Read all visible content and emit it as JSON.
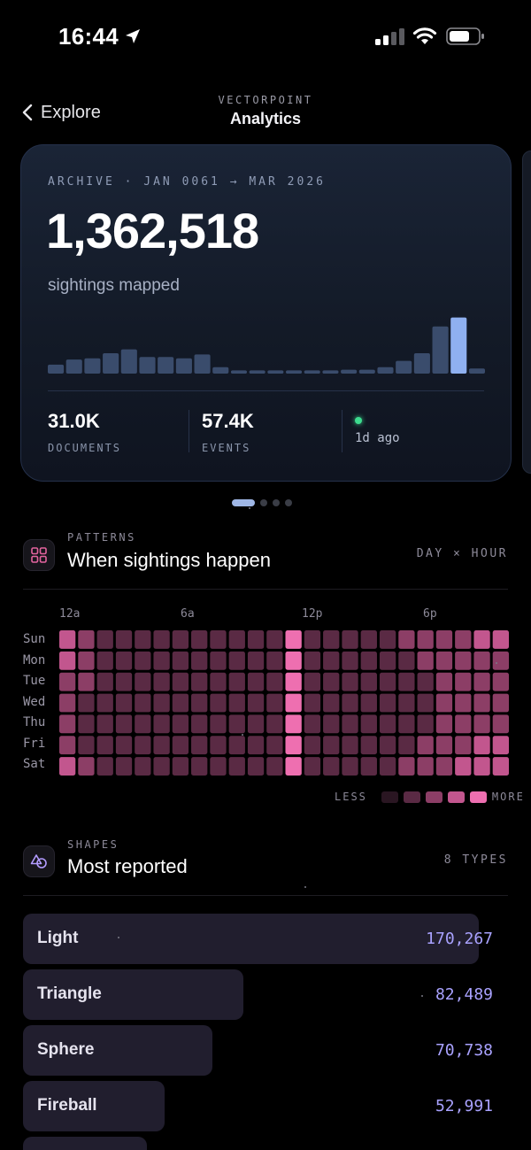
{
  "status_bar": {
    "time": "16:44"
  },
  "nav": {
    "back_label": "Explore",
    "kicker": "VECTORPOINT",
    "title": "Analytics"
  },
  "hero": {
    "kicker": "ARCHIVE · JAN 0061 → MAR 2026",
    "total": "1,362,518",
    "subtitle": "sightings mapped",
    "bar_levels": [
      0.14,
      0.22,
      0.24,
      0.32,
      0.38,
      0.26,
      0.26,
      0.24,
      0.3,
      0.1,
      0.05,
      0.05,
      0.05,
      0.05,
      0.05,
      0.05,
      0.06,
      0.06,
      0.1,
      0.2,
      0.32,
      0.74,
      0.88,
      0.08
    ],
    "highlight_index": 22,
    "stats": [
      {
        "value": "31.0K",
        "label": "DOCUMENTS"
      },
      {
        "value": "57.4K",
        "label": "EVENTS"
      }
    ],
    "updated": "1d ago",
    "colors": {
      "bar": "#3a4c6c",
      "highlight": "#8fb0f0",
      "live": "#3ddc8f"
    }
  },
  "pager": {
    "count": 4,
    "active": 0
  },
  "patterns": {
    "kicker": "PATTERNS",
    "title": "When sightings happen",
    "right": "DAY × HOUR",
    "hour_labels": [
      "12a",
      "6a",
      "12p",
      "6p"
    ],
    "days": [
      "Sun",
      "Mon",
      "Tue",
      "Wed",
      "Thu",
      "Fri",
      "Sat"
    ],
    "intensity": [
      [
        3,
        2,
        1,
        1,
        1,
        1,
        1,
        1,
        1,
        1,
        1,
        1,
        4,
        1,
        1,
        1,
        1,
        1,
        2,
        2,
        2,
        2,
        3,
        3
      ],
      [
        3,
        2,
        1,
        1,
        1,
        1,
        1,
        1,
        1,
        1,
        1,
        1,
        4,
        1,
        1,
        1,
        1,
        1,
        1,
        2,
        2,
        2,
        2,
        2
      ],
      [
        2,
        2,
        1,
        1,
        1,
        1,
        1,
        1,
        1,
        1,
        1,
        1,
        4,
        1,
        1,
        1,
        1,
        1,
        1,
        1,
        2,
        2,
        2,
        2
      ],
      [
        2,
        1,
        1,
        1,
        1,
        1,
        1,
        1,
        1,
        1,
        1,
        1,
        4,
        1,
        1,
        1,
        1,
        1,
        1,
        1,
        2,
        2,
        2,
        2
      ],
      [
        2,
        1,
        1,
        1,
        1,
        1,
        1,
        1,
        1,
        1,
        1,
        1,
        4,
        1,
        1,
        1,
        1,
        1,
        1,
        1,
        2,
        2,
        2,
        2
      ],
      [
        2,
        1,
        1,
        1,
        1,
        1,
        1,
        1,
        1,
        1,
        1,
        1,
        4,
        1,
        1,
        1,
        1,
        1,
        1,
        2,
        2,
        2,
        3,
        3
      ],
      [
        3,
        2,
        1,
        1,
        1,
        1,
        1,
        1,
        1,
        1,
        1,
        1,
        4,
        1,
        1,
        1,
        1,
        1,
        2,
        2,
        2,
        3,
        3,
        3
      ]
    ],
    "legend": {
      "less": "LESS",
      "more": "MORE",
      "colors": [
        "#2a1622",
        "#5a2a44",
        "#8c3e66",
        "#c2568e",
        "#ee6fb0"
      ]
    }
  },
  "shapes": {
    "kicker": "SHAPES",
    "title": "Most reported",
    "right": "8 TYPES",
    "items": [
      {
        "name": "Light",
        "value": "170,267",
        "share": 1.0
      },
      {
        "name": "Triangle",
        "value": "82,489",
        "share": 0.484
      },
      {
        "name": "Sphere",
        "value": "70,738",
        "share": 0.415
      },
      {
        "name": "Fireball",
        "value": "52,991",
        "share": 0.311
      }
    ]
  }
}
